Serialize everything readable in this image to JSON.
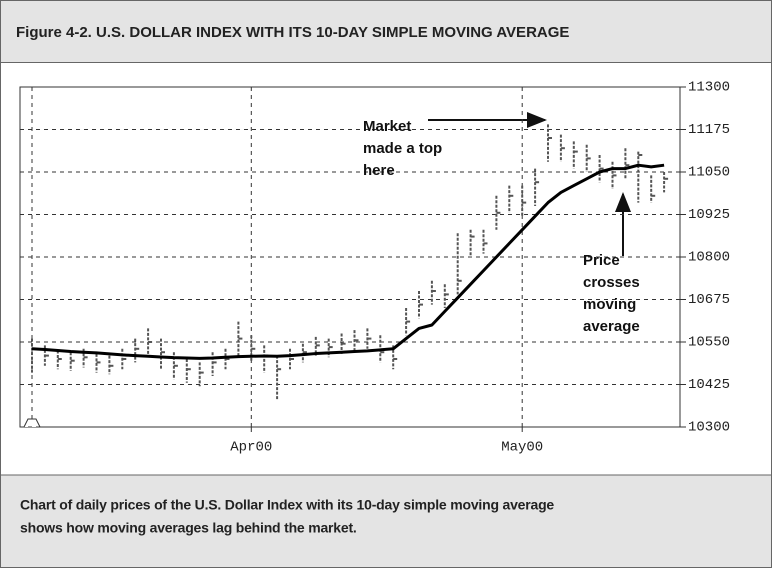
{
  "chart_data": {
    "type": "ohlc",
    "title": "Figure 4-2.  U.S. DOLLAR INDEX WITH ITS 10-DAY SIMPLE MOVING AVERAGE",
    "caption": [
      "Chart of daily prices of the U.S. Dollar Index with its 10-day simple moving average",
      "shows how moving averages lag behind the market."
    ],
    "categories": [
      null,
      null,
      null,
      null,
      null,
      null,
      null,
      null,
      null,
      null,
      null,
      null,
      null,
      null,
      null,
      null,
      null,
      "Apr00",
      null,
      null,
      null,
      null,
      null,
      null,
      null,
      null,
      null,
      null,
      null,
      null,
      null,
      null,
      null,
      null,
      null,
      null,
      null,
      null,
      "May00",
      null,
      null,
      null,
      null,
      null,
      null,
      null,
      null,
      null,
      null,
      null
    ],
    "high": [
      10560,
      10540,
      10525,
      10520,
      10530,
      10515,
      10510,
      10530,
      10560,
      10590,
      10560,
      10520,
      10500,
      10490,
      10520,
      10530,
      10610,
      10570,
      10540,
      10510,
      10530,
      10545,
      10565,
      10560,
      10575,
      10585,
      10590,
      10570,
      10540,
      10650,
      10700,
      10730,
      10720,
      10870,
      10880,
      10880,
      10980,
      11010,
      11010,
      11060,
      11190,
      11160,
      11140,
      11130,
      11100,
      11080,
      11120,
      11110,
      11040,
      11050
    ],
    "low": [
      10460,
      10480,
      10470,
      10465,
      10475,
      10460,
      10455,
      10470,
      10490,
      10510,
      10470,
      10440,
      10430,
      10420,
      10450,
      10470,
      10510,
      10490,
      10460,
      10380,
      10470,
      10490,
      10510,
      10505,
      10515,
      10520,
      10530,
      10490,
      10470,
      10570,
      10620,
      10660,
      10650,
      10690,
      10800,
      10810,
      10880,
      10930,
      10920,
      10950,
      11080,
      11080,
      11060,
      11050,
      11020,
      11000,
      11030,
      10960,
      10960,
      10990
    ],
    "close": [
      10530,
      10510,
      10500,
      10495,
      10505,
      10490,
      10480,
      10500,
      10530,
      10550,
      10520,
      10480,
      10470,
      10460,
      10490,
      10500,
      10560,
      10530,
      10510,
      10470,
      10500,
      10520,
      10540,
      10535,
      10545,
      10555,
      10560,
      10520,
      10500,
      10610,
      10660,
      10700,
      10690,
      10730,
      10860,
      10840,
      10930,
      10980,
      10960,
      11020,
      11150,
      11120,
      11110,
      11090,
      11060,
      11040,
      11070,
      11100,
      10980,
      11030
    ],
    "bar_color": "#555555",
    "moving_average": {
      "color": "#000000",
      "values": [
        10530,
        10528,
        10525,
        10522,
        10520,
        10518,
        10515,
        10512,
        10510,
        10508,
        10506,
        10504,
        10503,
        10502,
        10503,
        10505,
        10507,
        10508,
        10509,
        10508,
        10510,
        10513,
        10516,
        10518,
        10520,
        10522,
        10524,
        10527,
        10530,
        10560,
        10590,
        10600,
        10640,
        10680,
        10720,
        10760,
        10800,
        10840,
        10880,
        10920,
        10960,
        10990,
        11010,
        11030,
        11050,
        11060,
        11060,
        11070,
        11065,
        11070
      ]
    },
    "ylim": [
      10300,
      11300
    ],
    "yticks": [
      10300,
      10425,
      10550,
      10675,
      10800,
      10925,
      11050,
      11175,
      11300
    ],
    "grid": true,
    "annotations": [
      {
        "lines": [
          "Market",
          "made a top",
          "here"
        ]
      },
      {
        "lines": [
          "Price",
          "crosses",
          "moving",
          "average"
        ]
      }
    ]
  }
}
